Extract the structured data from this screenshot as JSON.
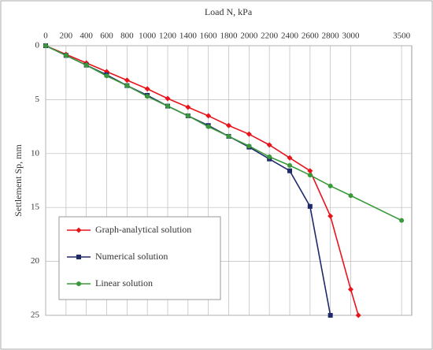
{
  "chart_data": {
    "type": "line",
    "x_label": "Load N, kPa",
    "y_label": "Settlement Sp, mm",
    "xlim": [
      0,
      3600
    ],
    "xticks": [
      0,
      200,
      400,
      600,
      800,
      1000,
      1200,
      1400,
      1600,
      1800,
      2000,
      2200,
      2400,
      2600,
      2800,
      3000,
      3500
    ],
    "ylim": [
      0,
      25
    ],
    "yticks": [
      0,
      5,
      10,
      15,
      20,
      25
    ],
    "y_reversed": true,
    "grid": true,
    "x_axis_position": "top",
    "series": [
      {
        "name": "Graph-analytical solution",
        "color": "#e8141c",
        "marker": "diamond",
        "marker_color": "#e8141c",
        "x": [
          0,
          200,
          400,
          600,
          800,
          1000,
          1200,
          1400,
          1600,
          1800,
          2000,
          2200,
          2400,
          2600,
          2800,
          3000,
          3075
        ],
        "values": [
          0,
          0.8,
          1.6,
          2.4,
          3.2,
          4.0,
          4.9,
          5.7,
          6.5,
          7.4,
          8.2,
          9.2,
          10.4,
          11.6,
          15.8,
          22.6,
          25
        ]
      },
      {
        "name": "Numerical solution",
        "color": "#1f2a6b",
        "marker": "square",
        "marker_color": "#1f2a6b",
        "x": [
          0,
          200,
          400,
          600,
          800,
          1000,
          1200,
          1400,
          1600,
          1800,
          2000,
          2200,
          2400,
          2600,
          2800
        ],
        "values": [
          0,
          0.9,
          1.8,
          2.7,
          3.7,
          4.6,
          5.6,
          6.5,
          7.4,
          8.4,
          9.4,
          10.5,
          11.6,
          14.9,
          25
        ]
      },
      {
        "name": "Linear solution",
        "color": "#3a9a3a",
        "marker": "circle",
        "marker_color": "#3a9a3a",
        "x": [
          0,
          200,
          400,
          600,
          800,
          1000,
          1200,
          1400,
          1600,
          1800,
          2000,
          2200,
          2400,
          2600,
          2800,
          3000,
          3500
        ],
        "values": [
          0,
          0.9,
          1.8,
          2.8,
          3.7,
          4.7,
          5.6,
          6.5,
          7.5,
          8.4,
          9.3,
          10.3,
          11.1,
          12.0,
          13.0,
          13.9,
          16.2
        ]
      }
    ],
    "legend_position": "lower left"
  }
}
